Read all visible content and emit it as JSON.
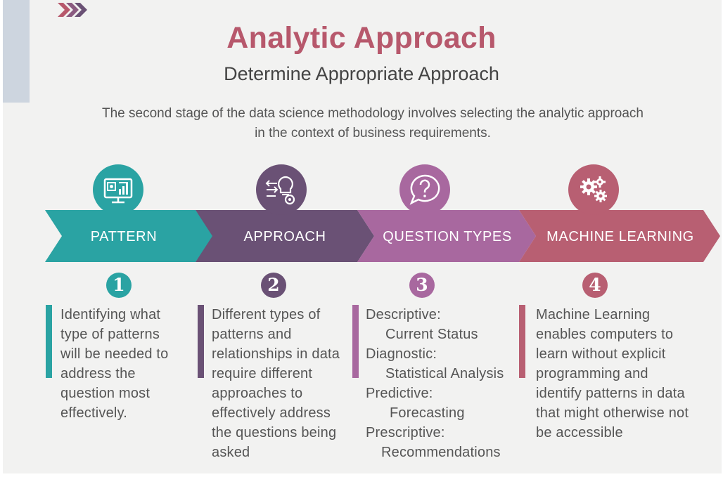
{
  "header": {
    "title": "Analytic Approach",
    "subtitle": "Determine Appropriate Approach",
    "description_lines": [
      "The second stage of the data science methodology involves selecting the analytic approach",
      "in the context of business requirements."
    ]
  },
  "colors": {
    "background": "#f2f2f1",
    "title": "#b7586c",
    "teal": "#2aa3a3",
    "purple": "#6a5175",
    "mauve": "#a8689f",
    "rose": "#b85f72",
    "strip": "#cdd5df"
  },
  "stages": [
    {
      "number": "1",
      "label": "PATTERN",
      "icon": "monitor-dashboard-icon",
      "color": "#2aa3a3",
      "text_lines": [
        "Identifying what",
        "type of patterns",
        "will be needed to",
        "address the",
        "question most",
        "effectively."
      ]
    },
    {
      "number": "2",
      "label": "APPROACH",
      "icon": "lightbulb-gear-icon",
      "color": "#6a5175",
      "text_lines": [
        "Different types of",
        "patterns and",
        "relationships in data",
        "require different",
        "approaches to",
        "effectively address",
        "the questions being",
        "asked"
      ]
    },
    {
      "number": "3",
      "label": "QUESTION TYPES",
      "icon": "question-bubble-icon",
      "color": "#a8689f",
      "question_types": [
        {
          "type": "Descriptive:",
          "detail": "Current Status"
        },
        {
          "type": "Diagnostic:",
          "detail": "Statistical Analysis"
        },
        {
          "type": "Predictive:",
          "detail": "Forecasting"
        },
        {
          "type": "Prescriptive:",
          "detail": "Recommendations"
        }
      ]
    },
    {
      "number": "4",
      "label": "MACHINE LEARNING",
      "icon": "gears-icon",
      "color": "#b85f72",
      "text_lines": [
        "Machine Learning",
        "enables computers to",
        "learn without explicit",
        "programming and",
        "identify patterns in data",
        "that might otherwise not",
        "be accessible"
      ]
    }
  ]
}
